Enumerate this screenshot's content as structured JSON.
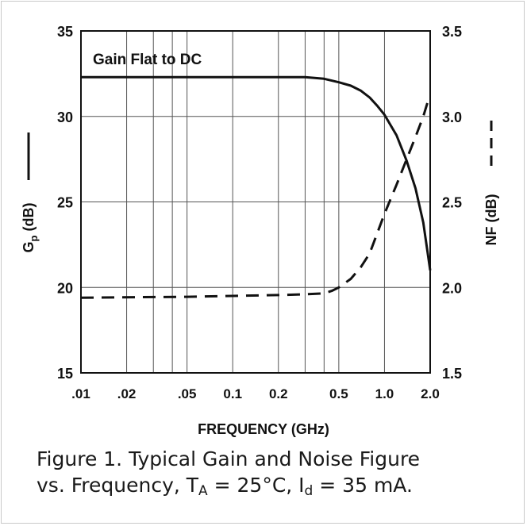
{
  "chart_data": {
    "type": "line",
    "xlabel": "FREQUENCY (GHz)",
    "x_scale": "log",
    "xlim": [
      0.01,
      2.0
    ],
    "x_ticks": [
      {
        "value": 0.01,
        "label": ".01"
      },
      {
        "value": 0.02,
        "label": ".02"
      },
      {
        "value": 0.05,
        "label": ".05"
      },
      {
        "value": 0.1,
        "label": "0.1"
      },
      {
        "value": 0.2,
        "label": "0.2"
      },
      {
        "value": 0.5,
        "label": "0.5"
      },
      {
        "value": 1.0,
        "label": "1.0"
      },
      {
        "value": 2.0,
        "label": "2.0"
      }
    ],
    "x_gridlines": [
      0.01,
      0.02,
      0.03,
      0.04,
      0.05,
      0.1,
      0.2,
      0.3,
      0.4,
      0.5,
      1.0,
      2.0
    ],
    "ylabel_left": {
      "main": "G",
      "sub": "p",
      "rest": " (dB)"
    },
    "ylim_left": [
      15,
      35
    ],
    "y_ticks_left": [
      "15",
      "20",
      "25",
      "30",
      "35"
    ],
    "ylabel_right": "NF (dB)",
    "ylim_right": [
      1.5,
      3.5
    ],
    "y_ticks_right": [
      "1.5",
      "2.0",
      "2.5",
      "3.0",
      "3.5"
    ],
    "grid": true,
    "annotation": "Gain Flat to DC",
    "series": [
      {
        "axis": "left",
        "style": "solid",
        "x": [
          0.01,
          0.05,
          0.1,
          0.2,
          0.3,
          0.4,
          0.5,
          0.6,
          0.7,
          0.8,
          0.9,
          1.0,
          1.2,
          1.4,
          1.6,
          1.8,
          2.0
        ],
        "y": [
          32.3,
          32.3,
          32.3,
          32.3,
          32.3,
          32.2,
          32.0,
          31.8,
          31.5,
          31.1,
          30.6,
          30.1,
          28.9,
          27.4,
          25.8,
          23.8,
          21.0
        ]
      },
      {
        "axis": "right",
        "style": "dashed",
        "x": [
          0.01,
          0.05,
          0.1,
          0.2,
          0.3,
          0.4,
          0.45,
          0.5,
          0.6,
          0.7,
          0.8,
          1.0,
          1.2,
          1.4,
          1.6,
          1.8,
          1.95
        ],
        "y": [
          1.94,
          1.945,
          1.95,
          1.955,
          1.96,
          1.965,
          1.98,
          2.0,
          2.05,
          2.12,
          2.2,
          2.43,
          2.6,
          2.75,
          2.88,
          3.0,
          3.1
        ]
      }
    ]
  },
  "caption": {
    "line1": "Figure 1.  Typical Gain and Noise Figure",
    "line2_prefix": "vs. Frequency, T",
    "line2_sub1": "A",
    "line2_mid": " = 25°C, I",
    "line2_sub2": "d",
    "line2_suffix": " = 35 mA."
  }
}
